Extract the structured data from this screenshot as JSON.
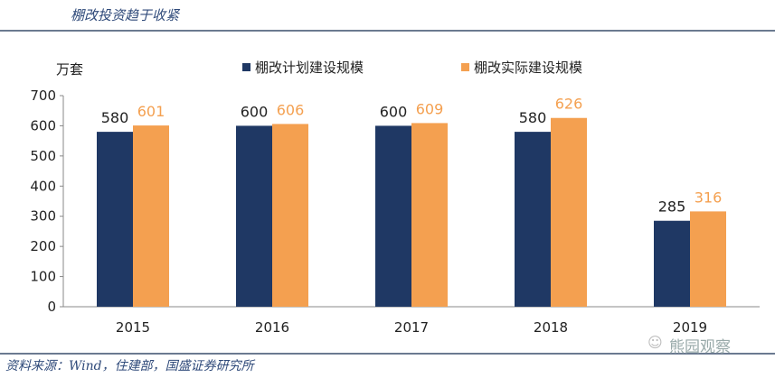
{
  "header": {
    "title": "棚改投资趋于收紧"
  },
  "footer": {
    "source": "资料来源：Wind，住建部，国盛证券研究所",
    "watermark": "熊园观察"
  },
  "chart_data": {
    "type": "bar",
    "title": "棚改投资趋于收紧",
    "ylabel": "万套",
    "xlabel": "",
    "ylim": [
      0,
      700
    ],
    "yticks": [
      0,
      100,
      200,
      300,
      400,
      500,
      600,
      700
    ],
    "categories": [
      "2015",
      "2016",
      "2017",
      "2018",
      "2019"
    ],
    "legend_position": "top-right",
    "series": [
      {
        "name": "棚改计划建设规模",
        "color": "#1f3864",
        "label_color": "#222222",
        "values": [
          580,
          600,
          600,
          580,
          285
        ]
      },
      {
        "name": "棚改实际建设规模",
        "color": "#f4a050",
        "label_color": "#f4a050",
        "values": [
          601,
          606,
          609,
          626,
          316
        ]
      }
    ],
    "grid": false
  }
}
